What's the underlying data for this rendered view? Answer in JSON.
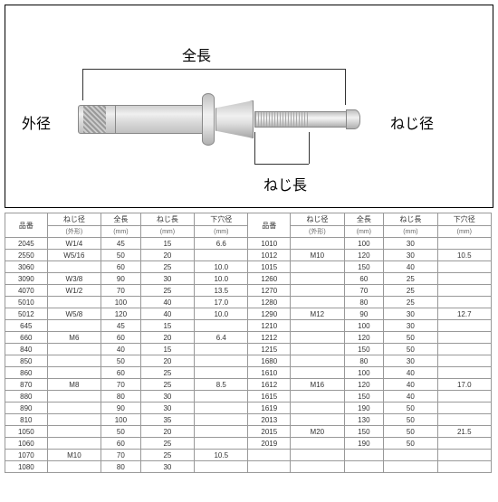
{
  "labels": {
    "zencho": "全長",
    "gaikei": "外径",
    "nejikei": "ねじ径",
    "nejicho": "ねじ長",
    "hinban": "品番",
    "shitaana": "下穴径",
    "mm": "(mm)",
    "gaikei_sub": "(外形)"
  },
  "rows_left": [
    [
      "2045",
      "W1/4",
      "45",
      "15",
      "6.6"
    ],
    [
      "2550",
      "W5/16",
      "50",
      "20",
      ""
    ],
    [
      "3060",
      "",
      "60",
      "25",
      "10.0"
    ],
    [
      "3090",
      "W3/8",
      "90",
      "30",
      "10.0"
    ],
    [
      "4070",
      "W1/2",
      "70",
      "25",
      "13.5"
    ],
    [
      "5010",
      "",
      "100",
      "40",
      "17.0"
    ],
    [
      "5012",
      "W5/8",
      "120",
      "40",
      "10.0"
    ],
    [
      "645",
      "",
      "45",
      "15",
      ""
    ],
    [
      "660",
      "M6",
      "60",
      "20",
      "6.4"
    ],
    [
      "840",
      "",
      "40",
      "15",
      ""
    ],
    [
      "850",
      "",
      "50",
      "20",
      ""
    ],
    [
      "860",
      "",
      "60",
      "25",
      ""
    ],
    [
      "870",
      "M8",
      "70",
      "25",
      "8.5"
    ],
    [
      "880",
      "",
      "80",
      "30",
      ""
    ],
    [
      "890",
      "",
      "90",
      "30",
      ""
    ],
    [
      "810",
      "",
      "100",
      "35",
      ""
    ],
    [
      "1050",
      "",
      "50",
      "20",
      ""
    ],
    [
      "1060",
      "",
      "60",
      "25",
      ""
    ],
    [
      "1070",
      "M10",
      "70",
      "25",
      "10.5"
    ],
    [
      "1080",
      "",
      "80",
      "30",
      ""
    ]
  ],
  "rows_right": [
    [
      "1010",
      "",
      "100",
      "30",
      ""
    ],
    [
      "1012",
      "M10",
      "120",
      "30",
      "10.5"
    ],
    [
      "1015",
      "",
      "150",
      "40",
      ""
    ],
    [
      "1260",
      "",
      "60",
      "25",
      ""
    ],
    [
      "1270",
      "",
      "70",
      "25",
      ""
    ],
    [
      "1280",
      "",
      "80",
      "25",
      ""
    ],
    [
      "1290",
      "M12",
      "90",
      "30",
      "12.7"
    ],
    [
      "1210",
      "",
      "100",
      "30",
      ""
    ],
    [
      "1212",
      "",
      "120",
      "50",
      ""
    ],
    [
      "1215",
      "",
      "150",
      "50",
      ""
    ],
    [
      "1680",
      "",
      "80",
      "30",
      ""
    ],
    [
      "1610",
      "",
      "100",
      "40",
      ""
    ],
    [
      "1612",
      "M16",
      "120",
      "40",
      "17.0"
    ],
    [
      "1615",
      "",
      "150",
      "40",
      ""
    ],
    [
      "1619",
      "",
      "190",
      "50",
      ""
    ],
    [
      "2013",
      "",
      "130",
      "50",
      ""
    ],
    [
      "2015",
      "M20",
      "150",
      "50",
      "21.5"
    ],
    [
      "2019",
      "",
      "190",
      "50",
      ""
    ]
  ]
}
